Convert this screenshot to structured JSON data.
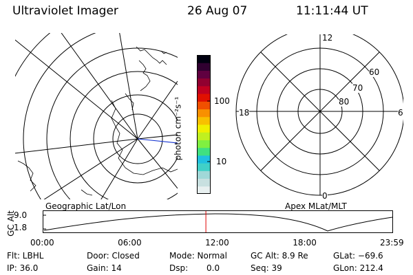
{
  "header": {
    "instrument": "Ultraviolet Imager",
    "date": "26 Aug 07",
    "time": "11:11:44 UT"
  },
  "colorbar": {
    "unit_label": "photon cm⁻²s⁻¹",
    "tick_100": "100",
    "tick_10": "10",
    "colors": [
      "#e8f0f0",
      "#c8e0e0",
      "#a0d8d8",
      "#40d0c8",
      "#20c0e0",
      "#40e080",
      "#80f040",
      "#c0f020",
      "#f0f000",
      "#f8c000",
      "#f89000",
      "#f05000",
      "#e01000",
      "#c00020",
      "#900030",
      "#600040",
      "#300030",
      "#000010"
    ]
  },
  "labels": {
    "geographic": "Geographic Lat/Lon",
    "apex": "Apex MLat/MLT"
  },
  "polar": {
    "mlt_12": "12",
    "mlt_18": "18",
    "mlt_6": "6",
    "mlt_0": "0",
    "lat_60": "60",
    "lat_70": "70",
    "lat_80": "80"
  },
  "orbit": {
    "ylabel": "GC Alt",
    "ytick_top": "9.0",
    "ytick_bottom": "1.8",
    "xticks": [
      "00:00",
      "06:00",
      "12:00",
      "18:00",
      "23:59"
    ],
    "marker_time": "11:11:44",
    "line_color": "#000000",
    "marker_color": "#e00000"
  },
  "footer": {
    "filter": "Flt: LBHL",
    "ip": "IP: 36.0",
    "door": "Door: Closed",
    "gain": "Gain: 14",
    "mode": "Mode: Normal",
    "dsp_label": "Dsp:",
    "dsp_value": "0.0",
    "gc_alt": "GC Alt: 8.9 Re",
    "seq": "Seq: 39",
    "glat": "GLat: −69.6",
    "glon": "GLon: 212.4"
  }
}
